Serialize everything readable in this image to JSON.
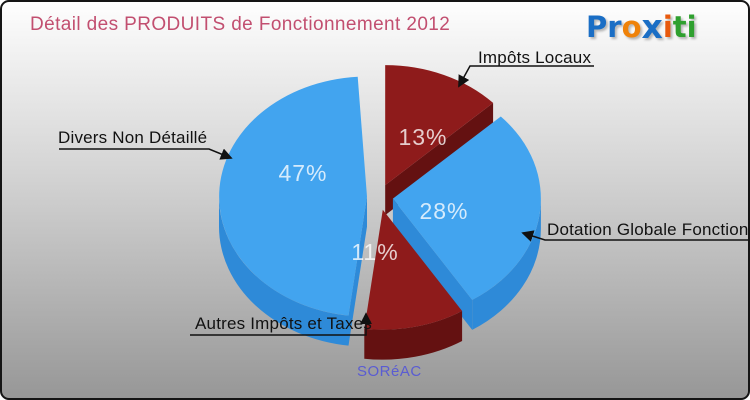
{
  "header": {
    "title": "Détail des PRODUITS de Fonctionnement 2012",
    "title_color": "#c24f70",
    "logo": {
      "name": "Proxiti",
      "letters": [
        {
          "ch": "P",
          "color": "#1a6ec5"
        },
        {
          "ch": "r",
          "color": "#1a6ec5"
        },
        {
          "ch": "o",
          "color": "#ef8209"
        },
        {
          "ch": "x",
          "color": "#1a6ec5"
        },
        {
          "ch": "i",
          "color": "#e85a0e"
        },
        {
          "ch": "t",
          "color": "#2fa02f"
        },
        {
          "ch": "i",
          "color": "#2fa02f"
        }
      ]
    }
  },
  "footer": {
    "source": "SORéAC",
    "color": "#5a5cd2"
  },
  "chart_data": {
    "type": "pie",
    "title": "Détail des PRODUITS de Fonctionnement 2012",
    "unit": "%",
    "style": "3d-exploded",
    "direction": "clockwise",
    "start_angle_deg": 0,
    "legend_position": "callouts-with-arrows",
    "slices": [
      {
        "label": "Impôts Locaux",
        "value": 13,
        "color": "#8e1b1b",
        "side_color": "#641111"
      },
      {
        "label": "Dotation Globale Fonctionnement",
        "value": 28,
        "color": "#42a4ef",
        "side_color": "#2e8ad8"
      },
      {
        "label": "Autres Impôts et Taxes",
        "value": 11,
        "color": "#8e1b1b",
        "side_color": "#641111"
      },
      {
        "label": "Divers Non Détaillé",
        "value": 47,
        "color": "#42a4ef",
        "side_color": "#2e8ad8"
      }
    ]
  }
}
